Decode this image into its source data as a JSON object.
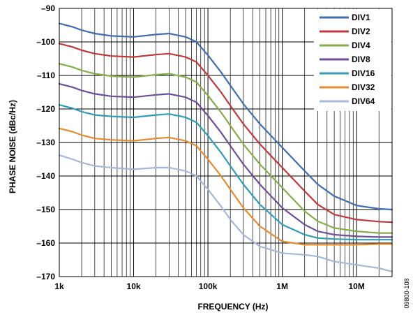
{
  "chart_data": {
    "type": "line",
    "xlabel": "FREQUENCY (Hz)",
    "ylabel": "PHASE NOISE (dBc/Hz)",
    "x_scale": "log",
    "xlim": [
      1000,
      30000000
    ],
    "ylim": [
      -170,
      -90
    ],
    "x_ticks": [
      1000,
      10000,
      100000,
      1000000,
      10000000
    ],
    "x_tick_labels": [
      "1k",
      "10k",
      "100k",
      "1M",
      "10M"
    ],
    "y_ticks": [
      -90,
      -100,
      -110,
      -120,
      -130,
      -140,
      -150,
      -160,
      -170
    ],
    "y_tick_labels": [
      "–90",
      "–100",
      "–110",
      "–120",
      "–130",
      "–140",
      "–150",
      "–160",
      "–170"
    ],
    "grid": true,
    "legend_position": "top-right",
    "figure_id": "09800-108",
    "series": [
      {
        "name": "DIV1",
        "color": "#3F6DAF",
        "x": [
          1000,
          1500,
          2000,
          3000,
          5000,
          10000,
          20000,
          30000,
          50000,
          70000,
          100000,
          150000,
          200000,
          300000,
          500000,
          1000000,
          2000000,
          3000000,
          5000000,
          10000000,
          20000000,
          30000000
        ],
        "y": [
          -94.5,
          -95.5,
          -96.5,
          -97.5,
          -98.2,
          -98.5,
          -97.8,
          -97.5,
          -98.5,
          -100,
          -104,
          -109,
          -113,
          -118.5,
          -124.5,
          -131.5,
          -138.5,
          -142.5,
          -146,
          -148.8,
          -149.8,
          -150
        ]
      },
      {
        "name": "DIV2",
        "color": "#C0383B",
        "x": [
          1000,
          1500,
          2000,
          3000,
          5000,
          10000,
          20000,
          30000,
          50000,
          70000,
          100000,
          150000,
          200000,
          300000,
          500000,
          1000000,
          2000000,
          3000000,
          5000000,
          10000000,
          20000000,
          30000000
        ],
        "y": [
          -100.5,
          -101.5,
          -102.5,
          -103.5,
          -104.2,
          -104.5,
          -103.8,
          -103.5,
          -104.5,
          -106,
          -110,
          -115,
          -119,
          -124.5,
          -130.5,
          -137.5,
          -144.5,
          -148.5,
          -151.5,
          -153,
          -153.6,
          -153.8
        ]
      },
      {
        "name": "DIV4",
        "color": "#86AC47",
        "x": [
          1000,
          1500,
          2000,
          3000,
          5000,
          10000,
          20000,
          30000,
          50000,
          70000,
          100000,
          150000,
          200000,
          300000,
          500000,
          1000000,
          2000000,
          3000000,
          5000000,
          10000000,
          20000000,
          30000000
        ],
        "y": [
          -106.5,
          -107.5,
          -108.5,
          -109.5,
          -110.2,
          -110.5,
          -109.8,
          -109.5,
          -110.5,
          -112,
          -116,
          -121,
          -125,
          -130.5,
          -136.5,
          -143.5,
          -150.5,
          -153.5,
          -155.5,
          -156.5,
          -157,
          -157
        ]
      },
      {
        "name": "DIV8",
        "color": "#6E4E9A",
        "x": [
          1000,
          1500,
          2000,
          3000,
          5000,
          10000,
          20000,
          30000,
          50000,
          70000,
          100000,
          150000,
          200000,
          300000,
          500000,
          1000000,
          2000000,
          3000000,
          5000000,
          10000000,
          20000000,
          30000000
        ],
        "y": [
          -112.5,
          -113.5,
          -114.5,
          -115.5,
          -116.2,
          -116.5,
          -115.8,
          -115.5,
          -116.5,
          -118,
          -122,
          -127,
          -131,
          -136.5,
          -142.5,
          -149.5,
          -154.5,
          -156.5,
          -157.5,
          -158,
          -158.2,
          -158.2
        ]
      },
      {
        "name": "DIV16",
        "color": "#2E9DB5",
        "x": [
          1000,
          1500,
          2000,
          3000,
          5000,
          10000,
          20000,
          30000,
          50000,
          70000,
          100000,
          150000,
          200000,
          300000,
          500000,
          1000000,
          2000000,
          3000000,
          5000000,
          10000000,
          20000000,
          30000000
        ],
        "y": [
          -118.8,
          -119.8,
          -120.8,
          -121.8,
          -122.2,
          -122.5,
          -121.8,
          -121.5,
          -122.5,
          -124,
          -128,
          -133,
          -137,
          -142.5,
          -148.5,
          -154.5,
          -157.5,
          -158.5,
          -158.8,
          -159,
          -159,
          -159
        ]
      },
      {
        "name": "DIV32",
        "color": "#E58A2E",
        "x": [
          1000,
          1500,
          2000,
          3000,
          5000,
          10000,
          20000,
          30000,
          50000,
          70000,
          100000,
          150000,
          200000,
          300000,
          500000,
          1000000,
          2000000,
          3000000,
          5000000,
          10000000,
          20000000,
          30000000
        ],
        "y": [
          -125.8,
          -126.8,
          -127.8,
          -128.8,
          -129.2,
          -129.5,
          -128.8,
          -128.5,
          -129.5,
          -131,
          -135,
          -140,
          -144,
          -149.5,
          -155,
          -159.5,
          -160.5,
          -160.5,
          -160.5,
          -160.5,
          -160.3,
          -160.3
        ]
      },
      {
        "name": "DIV64",
        "color": "#A6B8D8",
        "x": [
          1000,
          1500,
          2000,
          3000,
          5000,
          10000,
          20000,
          30000,
          50000,
          70000,
          100000,
          150000,
          200000,
          300000,
          500000,
          1000000,
          2000000,
          3000000,
          5000000,
          10000000,
          20000000,
          30000000
        ],
        "y": [
          -133.8,
          -135,
          -136,
          -137,
          -137.5,
          -138,
          -137.5,
          -137.5,
          -138.5,
          -140,
          -144,
          -149,
          -153,
          -157.5,
          -161,
          -163,
          -163.5,
          -164,
          -165.5,
          -166.5,
          -167.5,
          -168.5
        ]
      }
    ]
  }
}
